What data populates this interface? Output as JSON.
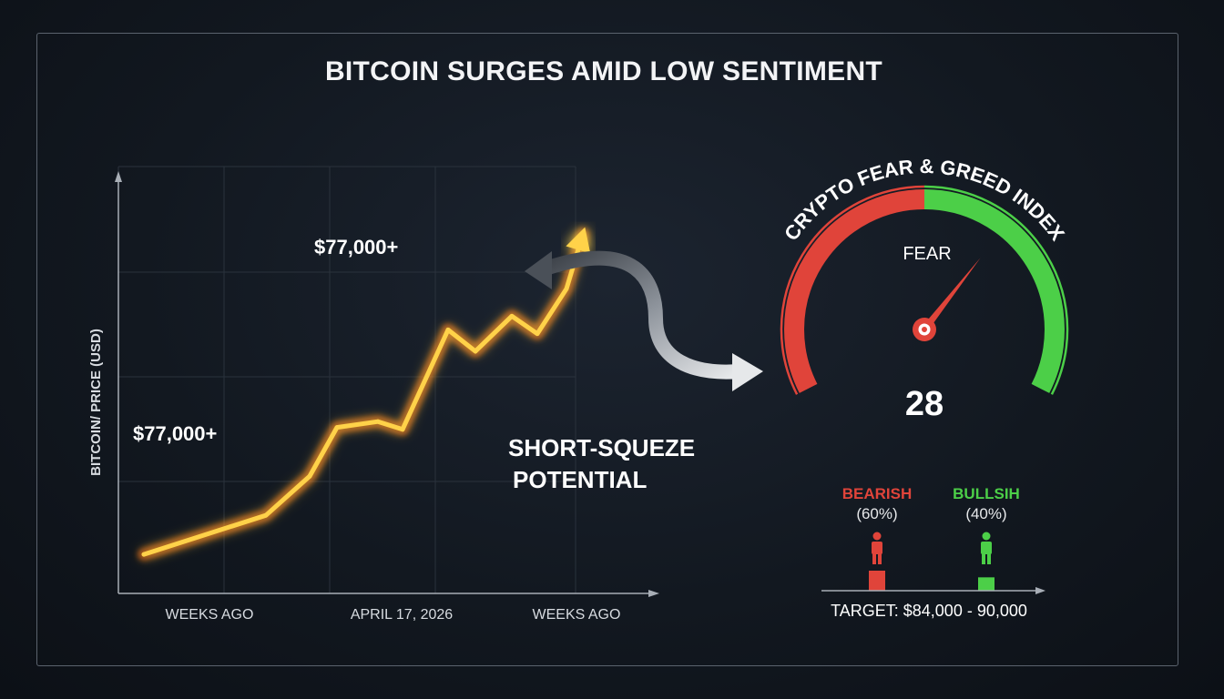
{
  "title": "BITCOIN SURGES AMID LOW SENTIMENT",
  "colors": {
    "line": "#ffd24a",
    "glow": "#ff7a1a",
    "fear": "#e0443a",
    "greed": "#4ccf48",
    "axis": "#9aa0a8"
  },
  "chart_data": [
    {
      "type": "line",
      "title": "",
      "xlabel": "",
      "ylabel": "BITCOIN/ PRICE (USD)",
      "x_tick_labels": [
        "WEEKS AGO",
        "APRIL 17, 2026",
        "WEEKS AGO"
      ],
      "series": [
        {
          "values": [
            70,
            72,
            74,
            76.5,
            76.8,
            76.4,
            81.5,
            80.4,
            82.2,
            81.3,
            83.6,
            86.4
          ]
        }
      ],
      "ylim": [
        68,
        90
      ],
      "grid": true,
      "annotations": [
        "$77,000+",
        "$77,000+",
        "SHORT-SQUEZE",
        "POTENTIAL"
      ]
    },
    {
      "type": "gauge",
      "title": "CRYPTO FEAR & GREED INDEX",
      "value": 28,
      "label": "FEAR",
      "range": [
        0,
        100
      ]
    },
    {
      "type": "bar",
      "categories": [
        "BEARISH",
        "BULLSIH"
      ],
      "percent_labels": [
        "(60%)",
        "(40%)"
      ],
      "values": [
        60,
        40
      ],
      "caption": "TARGET: $84,000 - 90,000"
    }
  ]
}
